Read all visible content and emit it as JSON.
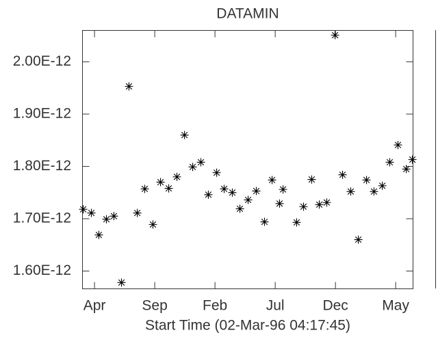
{
  "chart_data": {
    "type": "scatter",
    "title": "DATAMIN",
    "xlabel": "Start Time (02-Mar-96 04:17:45)",
    "xlim": [
      0,
      27.44
    ],
    "ylim": [
      1.566e-12,
      2.06e-12
    ],
    "xticks": [
      {
        "value": 1,
        "label": "Apr"
      },
      {
        "value": 6,
        "label": "Sep"
      },
      {
        "value": 11,
        "label": "Feb"
      },
      {
        "value": 16,
        "label": "Jul"
      },
      {
        "value": 21,
        "label": "Dec"
      },
      {
        "value": 26,
        "label": "May"
      }
    ],
    "yticks": [
      {
        "value": 1.6e-12,
        "label": "1.60E-12"
      },
      {
        "value": 1.7e-12,
        "label": "1.70E-12"
      },
      {
        "value": 1.8e-12,
        "label": "1.80E-12"
      },
      {
        "value": 1.9e-12,
        "label": "1.90E-12"
      },
      {
        "value": 2e-12,
        "label": "2.00E-12"
      }
    ],
    "color": "#000000",
    "x": [
      0.06,
      0.74,
      1.36,
      1.99,
      2.61,
      3.24,
      3.86,
      4.55,
      5.17,
      5.85,
      6.48,
      7.16,
      7.84,
      8.47,
      9.15,
      9.83,
      10.45,
      11.14,
      11.76,
      12.44,
      13.07,
      13.75,
      14.43,
      15.11,
      15.74,
      16.36,
      16.65,
      17.78,
      18.35,
      19.03,
      19.66,
      20.28,
      20.97,
      21.59,
      22.27,
      22.9,
      23.58,
      24.2,
      24.89,
      25.51,
      26.19,
      26.88,
      27.39
    ],
    "values": [
      1.718e-12,
      1.711e-12,
      1.669e-12,
      1.699e-12,
      1.705e-12,
      1.578e-12,
      1.953e-12,
      1.711e-12,
      1.757e-12,
      1.689e-12,
      1.77e-12,
      1.758e-12,
      1.78e-12,
      1.86e-12,
      1.799e-12,
      1.808e-12,
      1.746e-12,
      1.788e-12,
      1.757e-12,
      1.75e-12,
      1.719e-12,
      1.736e-12,
      1.753e-12,
      1.694e-12,
      1.774e-12,
      1.729e-12,
      1.756e-12,
      1.693e-12,
      1.723e-12,
      1.775e-12,
      1.727e-12,
      1.731e-12,
      2.051e-12,
      1.784e-12,
      1.752e-12,
      1.66e-12,
      1.774e-12,
      1.752e-12,
      1.763e-12,
      1.808e-12,
      1.841e-12,
      1.795e-12,
      1.813e-12
    ]
  }
}
